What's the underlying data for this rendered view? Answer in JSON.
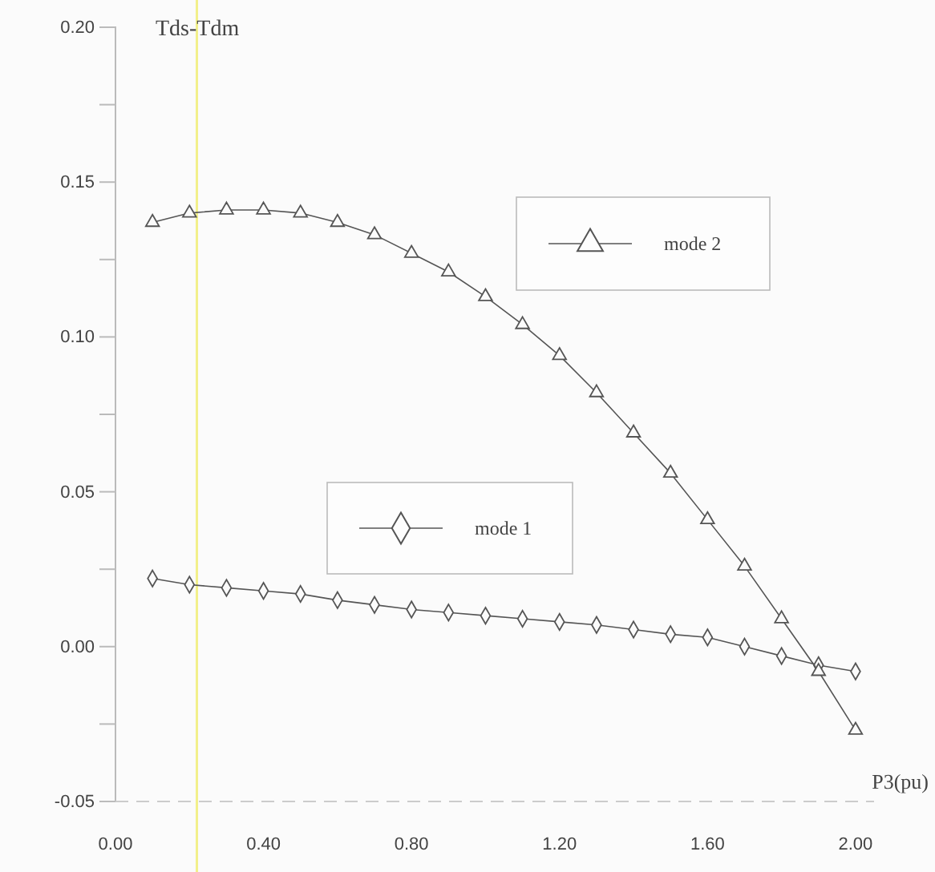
{
  "chart_data": {
    "type": "line",
    "xlabel": "P3(pu)",
    "ylabel": "Tds-Tdm",
    "x": [
      0.1,
      0.2,
      0.3,
      0.4,
      0.5,
      0.6,
      0.7,
      0.8,
      0.9,
      1.0,
      1.1,
      1.2,
      1.3,
      1.4,
      1.5,
      1.6,
      1.7,
      1.8,
      1.9,
      2.0
    ],
    "series": [
      {
        "name": "mode 1",
        "color": "#555555",
        "marker": "diamond",
        "values": [
          0.022,
          0.02,
          0.019,
          0.018,
          0.017,
          0.015,
          0.0135,
          0.012,
          0.011,
          0.01,
          0.009,
          0.008,
          0.007,
          0.0055,
          0.004,
          0.003,
          0.0,
          -0.003,
          -0.006,
          -0.008
        ]
      },
      {
        "name": "mode 2",
        "color": "#555555",
        "marker": "triangle",
        "values": [
          0.137,
          0.14,
          0.141,
          0.141,
          0.14,
          0.137,
          0.133,
          0.127,
          0.121,
          0.113,
          0.104,
          0.094,
          0.082,
          0.069,
          0.056,
          0.041,
          0.026,
          0.009,
          -0.008,
          -0.027
        ]
      }
    ],
    "xlim": [
      0,
      2.05
    ],
    "ylim": [
      -0.05,
      0.2
    ],
    "xticks": [
      {
        "value": 0,
        "label": "0.00"
      },
      {
        "value": 0.4,
        "label": "0.40"
      },
      {
        "value": 0.8,
        "label": "0.80"
      },
      {
        "value": 1.2,
        "label": "1.20"
      },
      {
        "value": 1.6,
        "label": "1.60"
      },
      {
        "value": 2.0,
        "label": "2.00"
      }
    ],
    "yticks": [
      {
        "value": -0.05,
        "label": "-0.05"
      },
      {
        "value": -0.025,
        "label": null
      },
      {
        "value": 0,
        "label": "0.00"
      },
      {
        "value": 0.025,
        "label": null
      },
      {
        "value": 0.05,
        "label": "0.05"
      },
      {
        "value": 0.075,
        "label": null
      },
      {
        "value": 0.1,
        "label": "0.10"
      },
      {
        "value": 0.125,
        "label": null
      },
      {
        "value": 0.15,
        "label": "0.15"
      },
      {
        "value": 0.175,
        "label": null
      },
      {
        "value": 0.2,
        "label": "0.20"
      }
    ],
    "ref_lines": [
      {
        "axis": "x",
        "value": 0.22,
        "label": null,
        "color": "#f2f08a"
      }
    ],
    "legend": "center",
    "grid": false
  }
}
